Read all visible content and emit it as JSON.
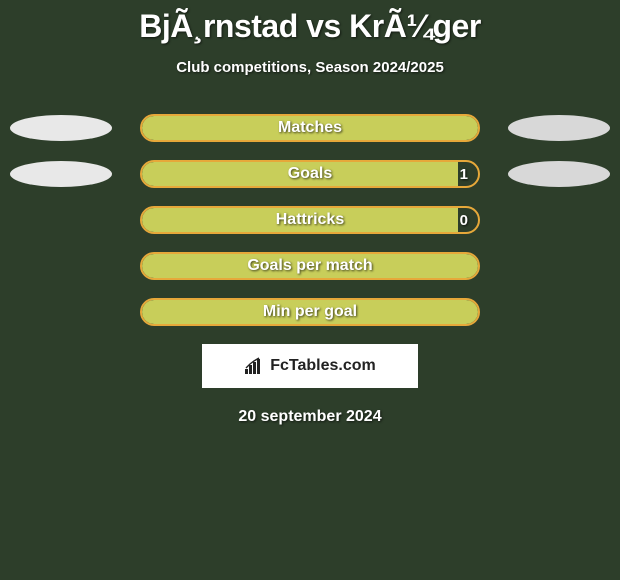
{
  "title": "BjÃ¸rnstad vs KrÃ¼ger",
  "subtitle": "Club competitions, Season 2024/2025",
  "date": "20 september 2024",
  "logo_text": "FcTables.com",
  "colors": {
    "background": "#2d3e2a",
    "bar_border": "#e6a83a",
    "bar_fill": "#c8ce5a",
    "ellipse_left": "#e8e8e8",
    "ellipse_right": "#d8d8d8",
    "text": "#ffffff"
  },
  "stats": [
    {
      "label": "Matches",
      "fill_pct": 100,
      "value_right": "",
      "show_left_ellipse": true,
      "show_right_ellipse": true
    },
    {
      "label": "Goals",
      "fill_pct": 94,
      "value_right": "1",
      "show_left_ellipse": true,
      "show_right_ellipse": true
    },
    {
      "label": "Hattricks",
      "fill_pct": 94,
      "value_right": "0",
      "show_left_ellipse": false,
      "show_right_ellipse": false
    },
    {
      "label": "Goals per match",
      "fill_pct": 100,
      "value_right": "",
      "show_left_ellipse": false,
      "show_right_ellipse": false
    },
    {
      "label": "Min per goal",
      "fill_pct": 100,
      "value_right": "",
      "show_left_ellipse": false,
      "show_right_ellipse": false
    }
  ]
}
